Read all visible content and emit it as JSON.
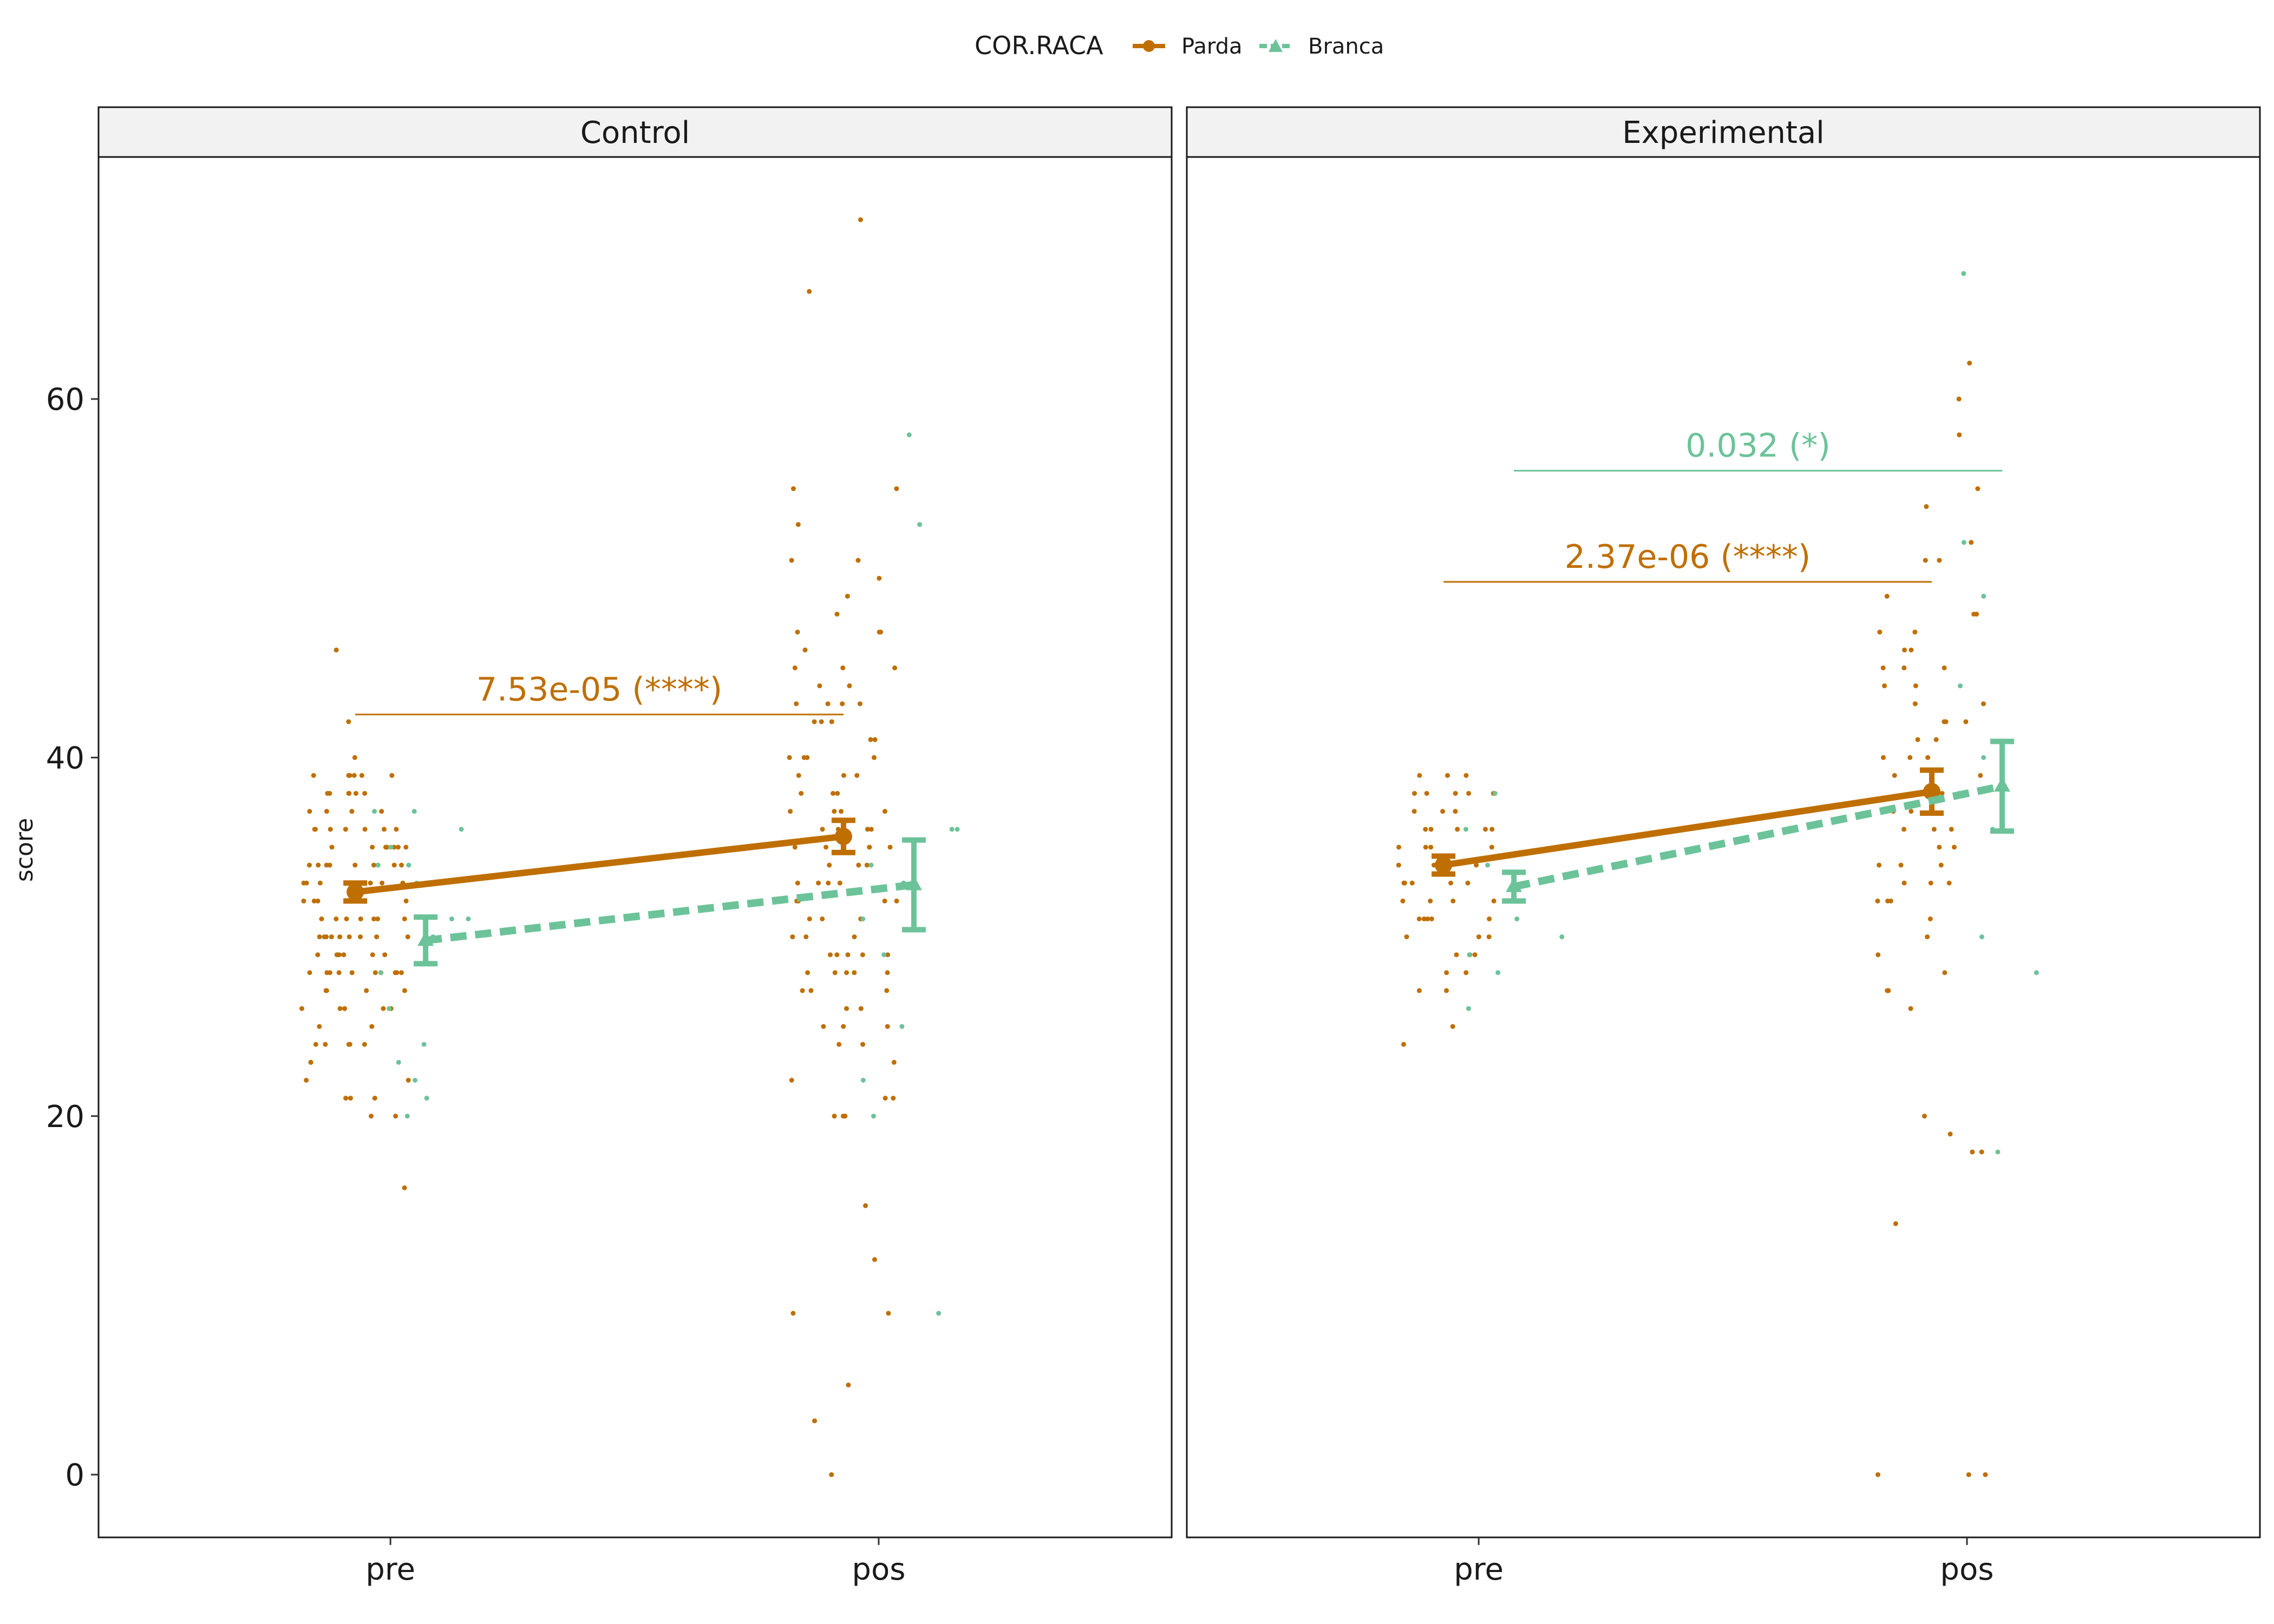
{
  "chart_data": {
    "type": "line",
    "ylabel": "score",
    "xlabel": "",
    "ylim": [
      -3.5,
      73.5
    ],
    "y_ticks": [
      0,
      20,
      40,
      60
    ],
    "categories": [
      "pre",
      "pos"
    ],
    "grid": false,
    "legend": {
      "position": "top",
      "title": "COR.RACA",
      "entries": [
        {
          "label": "Parda",
          "color": "#bf6f00",
          "marker": "circle",
          "linetype": "solid"
        },
        {
          "label": "Branca",
          "color": "#6cc399",
          "marker": "triangle",
          "linetype": "dashed"
        }
      ]
    },
    "facets": [
      {
        "strip": "Control",
        "series": [
          {
            "name": "Parda",
            "color": "#bf6f00",
            "means": [
              32.5,
              35.6
            ],
            "ci": [
              [
                32.0,
                33.0
              ],
              [
                34.7,
                36.5
              ]
            ],
            "points": {
              "pre": [
                39,
                39,
                39,
                38,
                38,
                38,
                37,
                36,
                36,
                36,
                35,
                35,
                35,
                34,
                34,
                34,
                34,
                34,
                33,
                33,
                33,
                33,
                33,
                32,
                32,
                32,
                31,
                31,
                31,
                31,
                31,
                30,
                30,
                30,
                30,
                30,
                30,
                29,
                29,
                29,
                29,
                28,
                28,
                28,
                28,
                28,
                28,
                27,
                27,
                26,
                26,
                25,
                24,
                24,
                24,
                23,
                22,
                21,
                21,
                20,
                16,
                46,
                42,
                40,
                39,
                39,
                39,
                38,
                38,
                37,
                37,
                36,
                36,
                36,
                35,
                35,
                34,
                34,
                33,
                33,
                32,
                32,
                31,
                30,
                30,
                29,
                28,
                28,
                28,
                27,
                26,
                26,
                24,
                24,
                23,
                22,
                21,
                20,
                38,
                37,
                36,
                35,
                35,
                34,
                33,
                32,
                31,
                30,
                29,
                28,
                27,
                26,
                25
              ],
              "pos": [
                55,
                53,
                51,
                49,
                47,
                47,
                46,
                45,
                45,
                44,
                43,
                43,
                43,
                42,
                42,
                41,
                40,
                40,
                40,
                39,
                39,
                38,
                38,
                37,
                37,
                37,
                36,
                36,
                35,
                35,
                35,
                34,
                34,
                33,
                33,
                33,
                32,
                32,
                32,
                31,
                31,
                30,
                30,
                29,
                29,
                29,
                28,
                28,
                28,
                27,
                27,
                26,
                25,
                25,
                24,
                24,
                23,
                21,
                20,
                20,
                15,
                12,
                9,
                5,
                55,
                51,
                50,
                48,
                47,
                45,
                44,
                43,
                42,
                41,
                40,
                39,
                38,
                37,
                36,
                35,
                34,
                33,
                32,
                31,
                30,
                29,
                28,
                27,
                26,
                25,
                22,
                21,
                20,
                9,
                0,
                66,
                70,
                3,
                35,
                36,
                29,
                28
              ]
            }
          },
          {
            "name": "Branca",
            "color": "#6cc399",
            "means": [
              29.8,
              32.9
            ],
            "ci": [
              [
                28.5,
                31.1
              ],
              [
                30.4,
                35.4
              ]
            ],
            "points": {
              "pre": [
                37,
                36,
                35,
                34,
                33,
                31,
                30,
                28,
                26,
                24,
                23,
                22,
                21,
                20,
                37,
                34,
                31
              ],
              "pos": [
                58,
                53,
                36,
                34,
                33,
                29,
                25,
                22,
                20,
                9,
                36,
                31
              ]
            }
          }
        ],
        "annotations": [
          {
            "label": "7.53e-05 (****)",
            "series": "Parda",
            "y": 42.4
          }
        ]
      },
      {
        "strip": "Experimental",
        "series": [
          {
            "name": "Parda",
            "color": "#bf6f00",
            "means": [
              34.0,
              38.1
            ],
            "ci": [
              [
                33.5,
                34.5
              ],
              [
                36.9,
                39.3
              ]
            ],
            "points": {
              "pre": [
                39,
                39,
                38,
                38,
                38,
                37,
                37,
                36,
                36,
                36,
                35,
                35,
                34,
                34,
                34,
                33,
                33,
                33,
                32,
                32,
                31,
                31,
                31,
                30,
                30,
                29,
                29,
                28,
                27,
                25,
                24,
                39,
                38,
                37,
                36,
                35,
                34,
                33,
                32,
                31,
                30,
                29,
                28,
                27,
                38,
                36,
                35,
                33,
                32,
                31
              ],
              "pos": [
                58,
                55,
                54,
                52,
                51,
                49,
                48,
                47,
                46,
                45,
                45,
                44,
                43,
                43,
                42,
                42,
                41,
                40,
                40,
                39,
                38,
                37,
                36,
                36,
                35,
                34,
                34,
                33,
                33,
                32,
                32,
                31,
                30,
                29,
                28,
                27,
                27,
                26,
                20,
                19,
                18,
                18,
                14,
                0,
                0,
                0,
                62,
                60,
                51,
                48,
                47,
                46,
                45,
                44,
                42,
                41,
                40,
                39,
                38,
                37,
                36,
                35,
                34,
                33,
                32
              ]
            }
          },
          {
            "name": "Branca",
            "color": "#6cc399",
            "means": [
              32.8,
              38.4
            ],
            "ci": [
              [
                32.0,
                33.6
              ],
              [
                35.9,
                40.9
              ]
            ],
            "points": {
              "pre": [
                38,
                36,
                34,
                33,
                32,
                31,
                30,
                29,
                28,
                26
              ],
              "pos": [
                67,
                52,
                49,
                44,
                40,
                38,
                36,
                30,
                28,
                18
              ]
            }
          }
        ],
        "annotations": [
          {
            "label": "2.37e-06 (****)",
            "series": "Parda",
            "y": 49.8
          },
          {
            "label": "0.032 (*)",
            "series": "Branca",
            "y": 56.0
          }
        ]
      }
    ]
  }
}
